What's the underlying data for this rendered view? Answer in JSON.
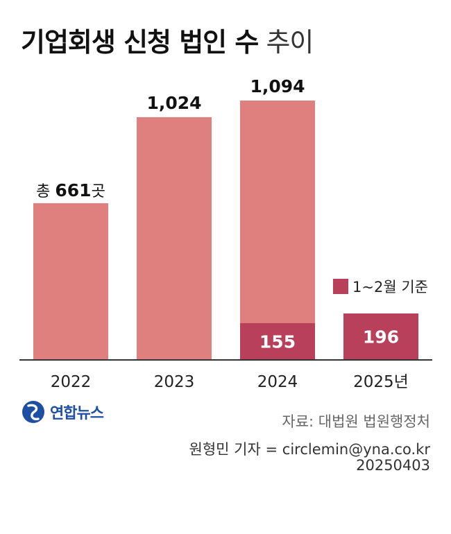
{
  "title": {
    "bold": "기업회생 신청 법인 수",
    "light": "추이"
  },
  "chart_data": {
    "type": "bar",
    "categories": [
      "2022",
      "2023",
      "2024",
      "2025년"
    ],
    "series": [
      {
        "name": "",
        "values": [
          661,
          1024,
          1094,
          null
        ]
      },
      {
        "name": "1~2월 기준",
        "values": [
          null,
          null,
          155,
          196
        ]
      }
    ],
    "total_labels": [
      "661",
      "1,024",
      "1,094",
      ""
    ],
    "first_label": {
      "prefix": "총 ",
      "value": "661",
      "suffix": "곳"
    },
    "partial_labels": [
      "",
      "",
      "155",
      "196"
    ],
    "ylim": [
      0,
      1094
    ],
    "grid": false,
    "legend_position": "right",
    "colors": {
      "total": "#df807e",
      "partial": "#b9405a",
      "axis": "#333333"
    }
  },
  "legend": {
    "label": "1~2월 기준",
    "color": "#b9405a"
  },
  "logo": {
    "text": "연합뉴스",
    "icon": "yonhap-globe-icon",
    "color": "#1e4fa3"
  },
  "source": "자료: 대법원 법원행정처",
  "reporter": "원형민 기자 = circlemin@yna.co.kr",
  "date": "20250403"
}
